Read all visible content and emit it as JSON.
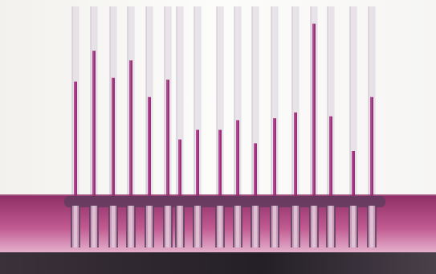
{
  "photo": {
    "subject": "capillary-tubes-in-liquid",
    "colors": {
      "background": "#fbfbf9",
      "liquid": "#c05a91",
      "liquid_light": "#e7b6cf",
      "liquid_dark": "#8f2f67",
      "tube_glass": "#d9d2dc",
      "tube_shadow": "#5b3d5e",
      "base": "#2a232b"
    },
    "tubes": [
      {
        "fill_level": 0.61
      },
      {
        "fill_level": 0.77
      },
      {
        "fill_level": 0.63
      },
      {
        "fill_level": 0.72
      },
      {
        "fill_level": 0.53
      },
      {
        "fill_level": 0.62
      },
      {
        "fill_level": 0.31
      },
      {
        "fill_level": 0.36
      },
      {
        "fill_level": 0.36
      },
      {
        "fill_level": 0.41
      },
      {
        "fill_level": 0.29
      },
      {
        "fill_level": 0.42
      },
      {
        "fill_level": 0.45
      },
      {
        "fill_level": 0.91
      },
      {
        "fill_level": 0.43
      },
      {
        "fill_level": 0.25
      },
      {
        "fill_level": 0.53
      }
    ]
  }
}
